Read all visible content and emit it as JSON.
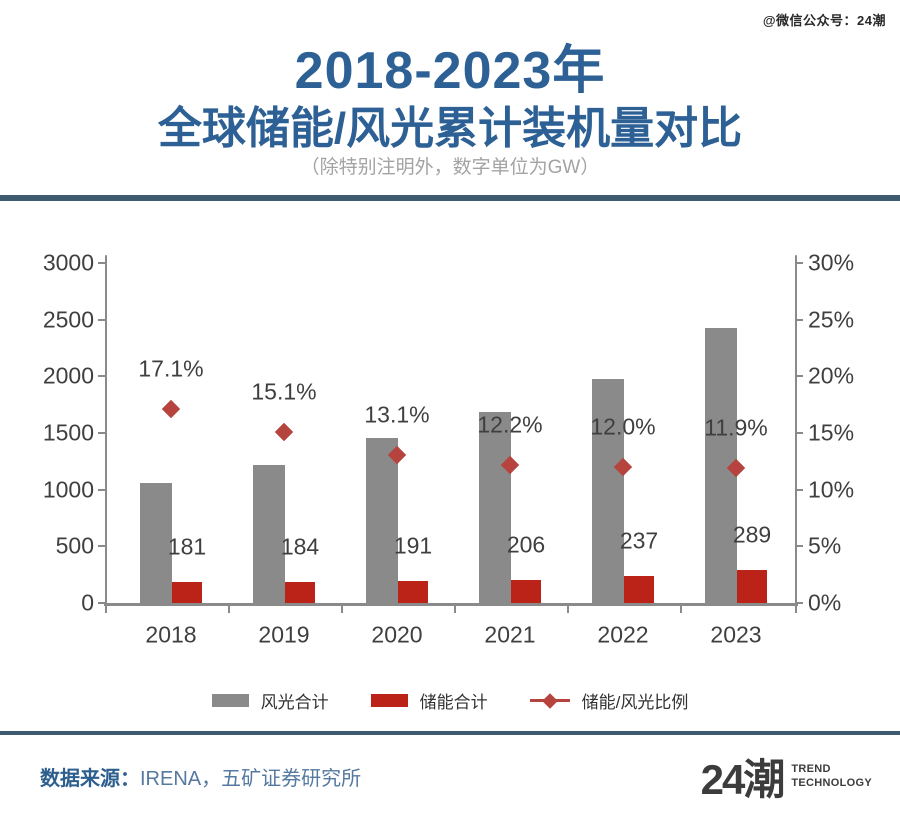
{
  "watermark": "@微信公众号：24潮",
  "header": {
    "title_line1": "2018-2023年",
    "title_line2": "全球储能/风光累计装机量对比",
    "subtitle": "（除特别注明外，数字单位为GW）"
  },
  "chart_data": {
    "type": "bar",
    "subtype": "grouped bars with scatter-diamond ratio overlay on secondary axis",
    "categories": [
      "2018",
      "2019",
      "2020",
      "2021",
      "2022",
      "2023"
    ],
    "series": [
      {
        "name": "风光合计",
        "type": "bar",
        "axis": "left",
        "color": "#8a8a8a",
        "values": [
          1058,
          1218,
          1458,
          1689,
          1975,
          2429
        ],
        "values_estimated": true,
        "data_labels": false
      },
      {
        "name": "储能合计",
        "type": "bar",
        "axis": "left",
        "color": "#bb2218",
        "values": [
          181,
          184,
          191,
          206,
          237,
          289
        ],
        "data_labels": true
      },
      {
        "name": "储能/风光比例",
        "type": "scatter",
        "marker": "diamond",
        "axis": "right",
        "color": "#b6433e",
        "values": [
          17.1,
          15.1,
          13.1,
          12.2,
          12.0,
          11.9
        ],
        "labels": [
          "17.1%",
          "15.1%",
          "13.1%",
          "12.2%",
          "12.0%",
          "11.9%"
        ]
      }
    ],
    "left_axis": {
      "ticks": [
        "3000",
        "2500",
        "2000",
        "1500",
        "1000",
        "500",
        "0"
      ],
      "min": 0,
      "max": 3000
    },
    "right_axis": {
      "ticks": [
        "30%",
        "25%",
        "20%",
        "15%",
        "10%",
        "5%",
        "0%"
      ],
      "min": 0,
      "max": 30
    },
    "grid": false,
    "legend_position": "bottom",
    "text_color": "#3f3f3f",
    "axis_color": "#8a8a8a"
  },
  "footer": {
    "source_label": "数据来源：",
    "source_value": "IRENA，五矿证券研究所",
    "logo_text": "24潮",
    "logo_sub_line1": "TREND",
    "logo_sub_line2": "TECHNOLOGY"
  },
  "colors": {
    "title_blue": "#2d6094",
    "divider_blue": "#3d5a6e",
    "bar_gray": "#8a8a8a",
    "bar_red": "#bb2218",
    "diamond_red": "#b6433e"
  }
}
